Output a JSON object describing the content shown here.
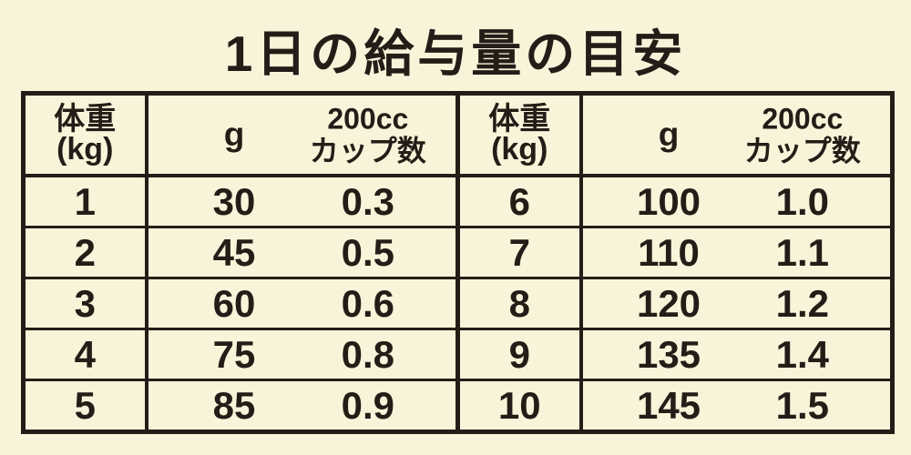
{
  "colors": {
    "background": "#f8f4da",
    "ink": "#241d17"
  },
  "title": "1日の給与量の目安",
  "table": {
    "header": {
      "weight": "体重",
      "weight_unit": "(kg)",
      "grams": "g",
      "cup_line1": "200cc",
      "cup_line2": "カップ数"
    },
    "left_rows": [
      {
        "weight": "1",
        "grams": "30",
        "cups": "0.3"
      },
      {
        "weight": "2",
        "grams": "45",
        "cups": "0.5"
      },
      {
        "weight": "3",
        "grams": "60",
        "cups": "0.6"
      },
      {
        "weight": "4",
        "grams": "75",
        "cups": "0.8"
      },
      {
        "weight": "5",
        "grams": "85",
        "cups": "0.9"
      }
    ],
    "right_rows": [
      {
        "weight": "6",
        "grams": "100",
        "cups": "1.0"
      },
      {
        "weight": "7",
        "grams": "110",
        "cups": "1.1"
      },
      {
        "weight": "8",
        "grams": "120",
        "cups": "1.2"
      },
      {
        "weight": "9",
        "grams": "135",
        "cups": "1.4"
      },
      {
        "weight": "10",
        "grams": "145",
        "cups": "1.5"
      }
    ]
  },
  "chart_data": {
    "type": "table",
    "title": "1日の給与量の目安",
    "columns": [
      "体重(kg)",
      "g",
      "200ccカップ数"
    ],
    "rows": [
      [
        1,
        30,
        0.3
      ],
      [
        2,
        45,
        0.5
      ],
      [
        3,
        60,
        0.6
      ],
      [
        4,
        75,
        0.8
      ],
      [
        5,
        85,
        0.9
      ],
      [
        6,
        100,
        1.0
      ],
      [
        7,
        110,
        1.1
      ],
      [
        8,
        120,
        1.2
      ],
      [
        9,
        135,
        1.4
      ],
      [
        10,
        145,
        1.5
      ]
    ],
    "layout": "split-into-two-side-by-side-halves (rows 1-5 left, rows 6-10 right)",
    "grid": true
  }
}
